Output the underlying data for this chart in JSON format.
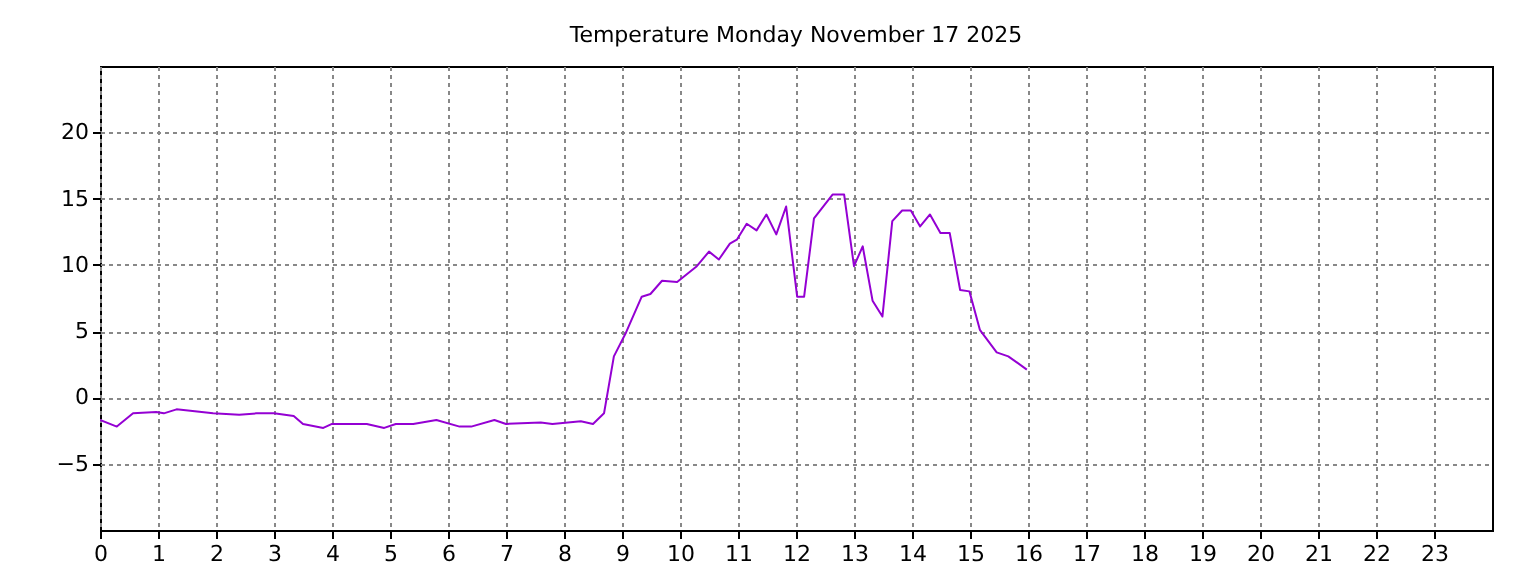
{
  "chart_data": {
    "type": "line",
    "title": "Temperature Monday November 17 2025",
    "x": [
      0,
      0.29,
      0.57,
      0.97,
      1.1,
      1.32,
      1.95,
      2.4,
      2.7,
      3.0,
      3.34,
      3.5,
      3.85,
      4.0,
      4.6,
      4.9,
      5.1,
      5.4,
      5.8,
      6.2,
      6.4,
      6.8,
      7.0,
      7.6,
      7.8,
      8.29,
      8.5,
      8.69,
      8.86,
      9.07,
      9.34,
      9.49,
      9.69,
      9.95,
      10.29,
      10.5,
      10.67,
      10.86,
      10.98,
      11.15,
      11.32,
      11.49,
      11.66,
      11.83,
      12.02,
      12.14,
      12.31,
      12.63,
      12.83,
      13.0,
      13.15,
      13.32,
      13.49,
      13.66,
      13.83,
      13.98,
      14.14,
      14.31,
      14.49,
      14.65,
      14.83,
      14.99,
      15.17,
      15.46,
      15.66,
      15.98
    ],
    "series": [
      {
        "color": "#9400d3",
        "values": [
          -1.7,
          -2.2,
          -1.2,
          -1.1,
          -1.2,
          -0.9,
          -1.2,
          -1.3,
          -1.2,
          -1.2,
          -1.4,
          -2.0,
          -2.3,
          -2.0,
          -2.0,
          -2.3,
          -2.0,
          -2.0,
          -1.7,
          -2.2,
          -2.2,
          -1.7,
          -2.0,
          -1.9,
          -2.0,
          -1.8,
          -2.0,
          -1.2,
          3.1,
          4.9,
          7.6,
          7.8,
          8.8,
          8.7,
          9.9,
          11.0,
          10.4,
          11.6,
          11.9,
          13.1,
          12.6,
          13.8,
          12.3,
          14.4,
          7.6,
          7.6,
          13.5,
          15.3,
          15.3,
          9.9,
          11.4,
          7.3,
          6.1,
          13.3,
          14.1,
          14.1,
          12.9,
          13.8,
          12.4,
          12.4,
          8.1,
          8.0,
          5.1,
          3.4,
          3.1,
          2.1
        ]
      }
    ],
    "xlim": [
      0,
      24
    ],
    "xticks": [
      0,
      1,
      2,
      3,
      4,
      5,
      6,
      7,
      8,
      9,
      10,
      11,
      12,
      13,
      14,
      15,
      16,
      17,
      18,
      19,
      20,
      21,
      22,
      23
    ],
    "ylim": [
      -10,
      25
    ],
    "yticks": [
      -5,
      0,
      5,
      10,
      15,
      20
    ],
    "grid": true,
    "line_style": "solid"
  }
}
